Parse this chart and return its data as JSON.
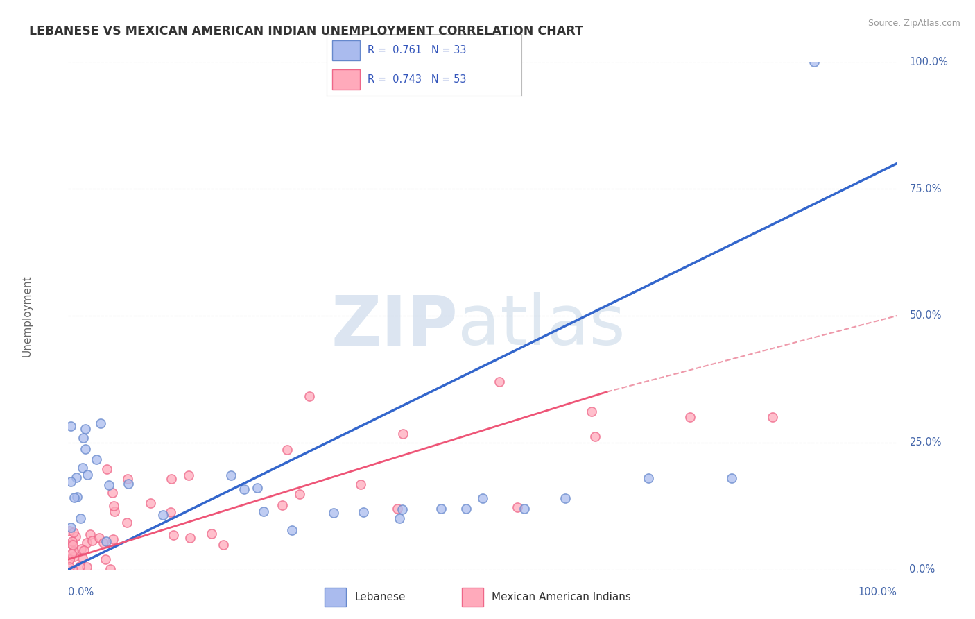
{
  "title": "LEBANESE VS MEXICAN AMERICAN INDIAN UNEMPLOYMENT CORRELATION CHART",
  "source": "Source: ZipAtlas.com",
  "ylabel": "Unemployment",
  "ytick_labels": [
    "0.0%",
    "25.0%",
    "50.0%",
    "75.0%",
    "100.0%"
  ],
  "ytick_values": [
    0,
    25,
    50,
    75,
    100
  ],
  "xlim": [
    0,
    100
  ],
  "ylim": [
    0,
    100
  ],
  "legend_label1": "Lebanese",
  "legend_label2": "Mexican American Indians",
  "r1": 0.761,
  "n1": 33,
  "r2": 0.743,
  "n2": 53,
  "blue_line_color": "#3366CC",
  "pink_line_color": "#EE5577",
  "pink_dash_color": "#EE99AA",
  "blue_scatter_face": "#AABBEE",
  "blue_scatter_edge": "#6688CC",
  "pink_scatter_face": "#FFAABB",
  "pink_scatter_edge": "#EE6688",
  "watermark_zip_color": "#C5D5E8",
  "watermark_atlas_color": "#B8CCE0",
  "background_color": "#FFFFFF",
  "grid_color": "#CCCCCC",
  "title_color": "#333333",
  "source_color": "#999999",
  "legend_text_color": "#3355BB",
  "axis_label_color": "#4466AA",
  "blue_line_x0": 0,
  "blue_line_y0": 0,
  "blue_line_x1": 100,
  "blue_line_y1": 80,
  "pink_solid_x0": 0,
  "pink_solid_y0": 2,
  "pink_solid_x1": 65,
  "pink_solid_y1": 35,
  "pink_dash_x0": 65,
  "pink_dash_y0": 35,
  "pink_dash_x1": 100,
  "pink_dash_y1": 50
}
